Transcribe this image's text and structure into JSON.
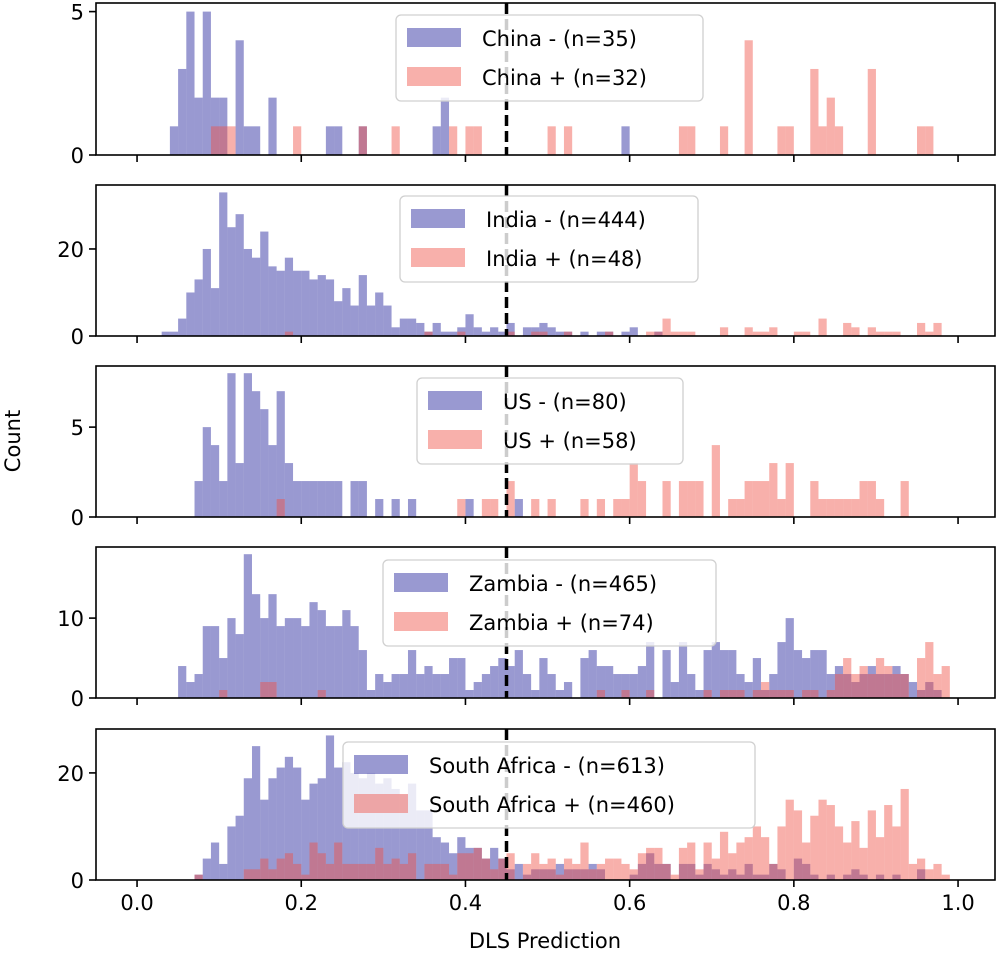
{
  "chart_data": {
    "type": "bar",
    "subtype": "histogram",
    "xlabel": "DLS Prediction",
    "ylabel": "Count",
    "xlim": [
      -0.05,
      1.045
    ],
    "xticks": [
      0.0,
      0.2,
      0.4,
      0.6,
      0.8,
      1.0
    ],
    "xtick_labels": [
      "0.0",
      "0.2",
      "0.4",
      "0.6",
      "0.8",
      "1.0"
    ],
    "bin_width": 0.01,
    "bins": 100,
    "bin_range": [
      0.0,
      1.0
    ],
    "threshold": 0.45,
    "threshold_style": "black dashed vertical line",
    "colors": {
      "negative": "#00008b",
      "positive": "#ef5045",
      "negative_alpha": 0.4,
      "positive_alpha": 0.45
    },
    "grid": false,
    "legend_position": "upper-center",
    "panels": [
      {
        "country": "China",
        "ylim": [
          0,
          5.3
        ],
        "yticks": [
          0,
          5
        ],
        "series": [
          {
            "name": "China - (n=35)",
            "label": "China - (n=35)",
            "class": "negative",
            "counts": {
              "4": 1,
              "5": 3,
              "6": 5,
              "7": 2,
              "8": 5,
              "9": 2,
              "10": 2,
              "12": 4,
              "13": 1,
              "14": 1,
              "16": 2,
              "23": 1,
              "24": 1,
              "27": 1,
              "36": 1,
              "37": 2,
              "59": 1
            }
          },
          {
            "name": "China + (n=32)",
            "label": "China + (n=32)",
            "class": "positive",
            "counts": {
              "9": 1,
              "10": 1,
              "11": 1,
              "19": 1,
              "27": 1,
              "31": 1,
              "38": 1,
              "40": 1,
              "41": 1,
              "50": 1,
              "52": 1,
              "66": 1,
              "67": 1,
              "71": 1,
              "74": 4,
              "78": 1,
              "79": 1,
              "82": 3,
              "83": 1,
              "84": 2,
              "85": 1,
              "89": 3,
              "95": 1,
              "96": 1
            }
          }
        ]
      },
      {
        "country": "India",
        "ylim": [
          0,
          34.7
        ],
        "yticks": [
          0,
          20
        ],
        "series": [
          {
            "name": "India - (n=444)",
            "label": "India - (n=444)",
            "class": "negative",
            "counts": {
              "3": 1,
              "4": 1,
              "5": 4,
              "6": 10,
              "7": 13,
              "8": 20,
              "9": 11,
              "10": 33,
              "11": 25,
              "12": 28,
              "13": 20,
              "14": 18,
              "15": 24,
              "16": 16,
              "17": 15,
              "18": 18,
              "19": 15,
              "20": 15,
              "21": 13,
              "22": 14,
              "23": 13,
              "24": 8,
              "25": 11,
              "26": 7,
              "27": 14,
              "28": 7,
              "29": 10,
              "30": 7,
              "31": 2,
              "32": 4,
              "33": 4,
              "34": 3,
              "35": 1,
              "36": 3,
              "37": 1,
              "38": 1,
              "39": 2,
              "40": 5,
              "41": 2,
              "42": 1,
              "43": 2,
              "44": 1,
              "45": 3,
              "47": 2,
              "48": 2,
              "49": 3,
              "50": 2,
              "51": 1,
              "52": 1,
              "54": 1,
              "56": 1,
              "57": 1,
              "59": 1,
              "60": 2,
              "63": 1
            }
          },
          {
            "name": "India + (n=48)",
            "label": "India + (n=48)",
            "class": "positive",
            "counts": {
              "18": 1,
              "35": 1,
              "39": 1,
              "45": 1,
              "48": 1,
              "49": 1,
              "52": 1,
              "57": 1,
              "62": 1,
              "63": 1,
              "64": 4,
              "65": 1,
              "66": 1,
              "67": 1,
              "71": 2,
              "74": 2,
              "75": 1,
              "76": 1,
              "77": 2,
              "80": 1,
              "81": 1,
              "83": 4,
              "86": 3,
              "87": 2,
              "89": 2,
              "90": 1,
              "91": 1,
              "92": 1,
              "95": 3,
              "96": 1,
              "97": 3
            }
          }
        ]
      },
      {
        "country": "US",
        "ylim": [
          0,
          8.4
        ],
        "yticks": [
          0,
          5
        ],
        "series": [
          {
            "name": "US - (n=80)",
            "label": "US - (n=80)",
            "class": "negative",
            "counts": {
              "7": 2,
              "8": 5,
              "9": 4,
              "10": 2,
              "11": 8,
              "12": 3,
              "13": 8,
              "14": 7,
              "15": 6,
              "16": 4,
              "17": 7,
              "18": 3,
              "19": 2,
              "20": 2,
              "21": 2,
              "22": 2,
              "23": 2,
              "24": 2,
              "26": 2,
              "27": 2,
              "29": 1,
              "31": 1,
              "33": 1,
              "40": 1,
              "46": 1
            }
          },
          {
            "name": "US + (n=58)",
            "label": "US + (n=58)",
            "class": "positive",
            "counts": {
              "17": 1,
              "39": 1,
              "42": 1,
              "43": 1,
              "45": 2,
              "48": 1,
              "50": 1,
              "54": 1,
              "56": 1,
              "58": 1,
              "59": 1,
              "60": 3,
              "61": 2,
              "64": 2,
              "66": 2,
              "67": 2,
              "68": 2,
              "70": 4,
              "72": 1,
              "73": 1,
              "74": 2,
              "75": 2,
              "76": 2,
              "77": 3,
              "78": 1,
              "79": 3,
              "82": 2,
              "83": 1,
              "84": 1,
              "85": 1,
              "86": 1,
              "87": 1,
              "88": 2,
              "89": 2,
              "90": 1,
              "93": 2
            }
          }
        ]
      },
      {
        "country": "Zambia",
        "ylim": [
          0,
          18.9
        ],
        "yticks": [
          0,
          10
        ],
        "series": [
          {
            "name": "Zambia - (n=465)",
            "label": "Zambia - (n=465)",
            "class": "negative",
            "counts": {
              "5": 4,
              "6": 2,
              "7": 3,
              "8": 9,
              "9": 9,
              "10": 5,
              "11": 10,
              "12": 8,
              "13": 18,
              "14": 13,
              "15": 10,
              "16": 13,
              "17": 9,
              "18": 10,
              "19": 10,
              "20": 9,
              "21": 12,
              "22": 11,
              "23": 9,
              "24": 9,
              "25": 11,
              "26": 9,
              "27": 6,
              "28": 1,
              "29": 3,
              "30": 2,
              "31": 3,
              "32": 3,
              "33": 6,
              "34": 3,
              "35": 4,
              "36": 3,
              "37": 3,
              "38": 5,
              "39": 5,
              "40": 1,
              "41": 2,
              "42": 3,
              "43": 4,
              "44": 5,
              "45": 4,
              "46": 6,
              "47": 3,
              "48": 1,
              "49": 5,
              "50": 3,
              "51": 1,
              "52": 2,
              "54": 5,
              "55": 6,
              "56": 4,
              "57": 4,
              "58": 3,
              "59": 3,
              "60": 3,
              "61": 4,
              "62": 7,
              "64": 6,
              "65": 2,
              "66": 7,
              "67": 3,
              "68": 1,
              "69": 6,
              "70": 7,
              "71": 6,
              "72": 6,
              "73": 3,
              "74": 2,
              "75": 5,
              "76": 1,
              "77": 3,
              "78": 7,
              "79": 10,
              "80": 6,
              "81": 5,
              "82": 6,
              "83": 6,
              "84": 3,
              "85": 4,
              "86": 3,
              "87": 2,
              "88": 3,
              "89": 4,
              "90": 3,
              "91": 3,
              "92": 4,
              "93": 3,
              "94": 2,
              "95": 1,
              "96": 2,
              "97": 1
            }
          },
          {
            "name": "Zambia + (n=74)",
            "label": "Zambia + (n=74)",
            "class": "positive",
            "counts": {
              "10": 1,
              "15": 2,
              "16": 2,
              "22": 1,
              "56": 1,
              "59": 1,
              "62": 1,
              "69": 1,
              "71": 1,
              "72": 1,
              "73": 1,
              "75": 1,
              "76": 2,
              "77": 1,
              "78": 1,
              "79": 1,
              "81": 1,
              "82": 1,
              "84": 1,
              "85": 3,
              "86": 5,
              "87": 3,
              "88": 4,
              "89": 3,
              "90": 5,
              "91": 4,
              "92": 3,
              "93": 3,
              "95": 5,
              "96": 7,
              "97": 3,
              "98": 4
            }
          }
        ]
      },
      {
        "country": "South Africa",
        "ylim": [
          0,
          28.2
        ],
        "yticks": [
          0,
          20
        ],
        "series": [
          {
            "name": "South Africa - (n=613)",
            "label": "South Africa - (n=613)",
            "class": "negative",
            "counts": {
              "7": 1,
              "8": 4,
              "9": 7,
              "10": 3,
              "11": 10,
              "12": 12,
              "13": 19,
              "14": 25,
              "15": 15,
              "16": 19,
              "17": 21,
              "18": 23,
              "19": 21,
              "20": 15,
              "21": 18,
              "22": 19,
              "23": 27,
              "24": 21,
              "25": 22,
              "26": 20,
              "27": 19,
              "28": 20,
              "29": 18,
              "30": 19,
              "31": 17,
              "32": 16,
              "33": 18,
              "34": 13,
              "35": 13,
              "36": 8,
              "37": 7,
              "38": 5,
              "39": 8,
              "40": 6,
              "41": 6,
              "42": 4,
              "43": 6,
              "44": 4,
              "45": 2,
              "46": 3,
              "47": 1,
              "48": 2,
              "49": 2,
              "50": 2,
              "51": 3,
              "52": 2,
              "53": 2,
              "54": 2,
              "55": 3,
              "56": 2,
              "60": 1,
              "61": 3,
              "62": 5,
              "63": 3,
              "64": 3,
              "66": 3,
              "67": 3,
              "68": 1,
              "69": 3,
              "70": 2,
              "71": 1,
              "72": 2,
              "73": 1,
              "74": 3,
              "75": 1,
              "76": 1,
              "77": 3,
              "78": 2,
              "80": 4,
              "81": 3,
              "82": 1,
              "84": 1,
              "86": 1,
              "87": 2,
              "88": 1,
              "90": 1,
              "92": 1,
              "95": 2
            }
          },
          {
            "name": "South Africa + (n=460)",
            "label": "South Africa + (n=460)",
            "class": "positive",
            "counts": {
              "7": 1,
              "13": 2,
              "14": 2,
              "15": 4,
              "16": 2,
              "17": 4,
              "18": 5,
              "19": 3,
              "20": 1,
              "21": 7,
              "22": 5,
              "23": 3,
              "24": 7,
              "25": 3,
              "26": 3,
              "27": 3,
              "28": 3,
              "29": 6,
              "30": 3,
              "31": 4,
              "32": 3,
              "33": 5,
              "35": 3,
              "36": 3,
              "37": 3,
              "38": 1,
              "39": 5,
              "40": 5,
              "41": 6,
              "42": 4,
              "43": 2,
              "44": 4,
              "45": 5,
              "47": 3,
              "48": 5,
              "49": 3,
              "50": 4,
              "51": 1,
              "52": 4,
              "53": 3,
              "54": 7,
              "55": 2,
              "56": 3,
              "57": 4,
              "58": 4,
              "59": 3,
              "60": 2,
              "61": 5,
              "62": 6,
              "63": 6,
              "64": 3,
              "65": 1,
              "66": 6,
              "67": 7,
              "68": 2,
              "69": 7,
              "70": 4,
              "71": 9,
              "72": 5,
              "73": 7,
              "74": 8,
              "75": 10,
              "76": 8,
              "77": 3,
              "78": 10,
              "79": 15,
              "80": 13,
              "81": 7,
              "82": 12,
              "83": 15,
              "84": 14,
              "85": 10,
              "86": 7,
              "87": 11,
              "88": 6,
              "89": 13,
              "90": 8,
              "91": 14,
              "92": 10,
              "93": 17,
              "94": 3,
              "95": 4,
              "96": 2,
              "97": 3,
              "98": 1
            }
          }
        ]
      }
    ]
  }
}
